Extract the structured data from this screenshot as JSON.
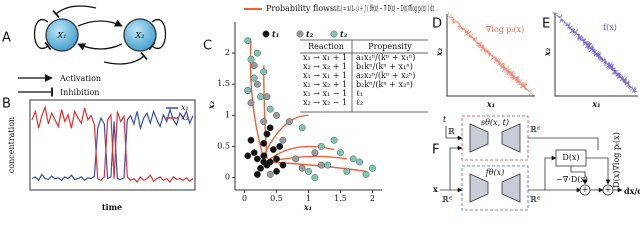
{
  "panel_labels": [
    "A",
    "B",
    "C",
    "D",
    "E",
    "F"
  ],
  "panel_a": {
    "nodes": [
      "X₁",
      "X₂"
    ],
    "legend": [
      "Activation",
      "Inhibition"
    ]
  },
  "chart_data": [
    {
      "type": "line",
      "xlabel": "time",
      "ylabel": "concentration",
      "ylim": [
        0,
        1
      ],
      "series": [
        {
          "name": "x₁",
          "color": "#3a4fb0",
          "values": [
            0.1,
            0.12,
            0.08,
            0.15,
            0.1,
            0.09,
            0.13,
            0.1,
            0.11,
            0.08,
            0.12,
            0.1,
            0.14,
            0.09,
            0.1,
            0.12,
            0.08,
            0.11,
            0.1,
            0.13,
            0.7,
            0.82,
            0.75,
            0.1,
            0.12,
            0.78,
            0.1,
            0.09,
            0.11,
            0.8,
            0.85,
            0.75,
            0.9,
            0.7,
            0.82,
            0.88,
            0.76,
            0.9,
            0.8,
            0.72,
            0.86,
            0.78,
            0.92,
            0.8,
            0.74,
            0.88,
            0.82,
            0.9,
            0.76,
            0.85
          ]
        },
        {
          "name": "x₂",
          "color": "#e03030",
          "values": [
            0.8,
            0.9,
            0.7,
            0.85,
            0.95,
            0.75,
            0.88,
            0.8,
            0.72,
            0.92,
            0.78,
            0.86,
            0.7,
            0.9,
            0.82,
            0.76,
            0.94,
            0.8,
            0.85,
            0.74,
            0.1,
            0.08,
            0.12,
            0.8,
            0.86,
            0.1,
            0.9,
            0.78,
            0.84,
            0.12,
            0.08,
            0.1,
            0.06,
            0.12,
            0.08,
            0.1,
            0.14,
            0.07,
            0.1,
            0.12,
            0.08,
            0.1,
            0.06,
            0.12,
            0.09,
            0.1,
            0.08,
            0.11,
            0.07,
            0.1
          ]
        }
      ]
    },
    {
      "type": "scatter",
      "xlabel": "x₁",
      "ylabel": "x₂",
      "xlim": [
        -0.15,
        2.15
      ],
      "ylim": [
        -0.2,
        2.5
      ],
      "xticks": [
        0,
        0.5,
        1,
        1.5,
        2
      ],
      "yticks": [
        0,
        0.5,
        1,
        1.5,
        2
      ],
      "flow_legend": "Probability flows",
      "formula": "xᵢ(tᵢ) = xᵢ(tᵢ₋₁) + ∫ ( fθ(x) − ∇·D(x) − D(x)∇log pₜ(x) ) dt",
      "series": [
        {
          "name": "t₁",
          "color": "#111111",
          "x": [
            0.2,
            0.3,
            0.35,
            0.4,
            0.25,
            0.5,
            0.45,
            0.3,
            0.15,
            0.6,
            0.1,
            0.35,
            0.5,
            0.4,
            0.2,
            0.55,
            0.3,
            0.05
          ],
          "y": [
            0.3,
            0.35,
            0.2,
            0.25,
            0.15,
            0.3,
            0.45,
            0.55,
            0.4,
            0.2,
            0.6,
            0.7,
            0.1,
            0.8,
            0.05,
            0.5,
            0.25,
            0.35
          ]
        },
        {
          "name": "t₂",
          "color": "#9a9a9a",
          "x": [
            0.1,
            0.3,
            0.6,
            0.8,
            0.2,
            0.5,
            0.9,
            1.1,
            0.4,
            0.7,
            0.15,
            1.2,
            0.05,
            0.35
          ],
          "y": [
            1.2,
            0.9,
            0.6,
            0.3,
            1.5,
            1.0,
            0.15,
            0.4,
            0.05,
            0.9,
            1.8,
            0.2,
            1.4,
            1.3
          ]
        },
        {
          "name": "t₃",
          "color": "#7ec4b4",
          "x": [
            0.05,
            0.1,
            0.2,
            0.15,
            0.3,
            0.05,
            1.3,
            1.6,
            1.9,
            1.8,
            1.5,
            2.0,
            1.2,
            1.7,
            0.9,
            1.0,
            0.25,
            0.4,
            1.1,
            1.4
          ],
          "y": [
            2.2,
            1.9,
            2.0,
            1.6,
            1.7,
            1.4,
            0.2,
            0.1,
            0.05,
            0.25,
            0.4,
            0.15,
            0.5,
            0.3,
            0.8,
            0.1,
            1.3,
            1.1,
            0.0,
            0.6
          ]
        }
      ],
      "table": {
        "header": [
          "Reaction",
          "Propensity"
        ],
        "rows": [
          [
            "x₁ → x₁ + 1",
            "a₁x₁ⁿ/(kⁿ + x₁ⁿ)"
          ],
          [
            "x₂ → x₂ + 1",
            "b₁kⁿ/(kⁿ + x₁ⁿ)"
          ],
          [
            "x₁ → x₁ + 1",
            "a₂x₂ⁿ/(kⁿ + x₂ⁿ)"
          ],
          [
            "x₂ → x₂ + 1",
            "b₂kⁿ/(kⁿ + x₂ⁿ)"
          ],
          [
            "x₁ → x₁ − 1",
            "ℓ₁"
          ],
          [
            "x₂ → x₂ − 1",
            "ℓ₂"
          ]
        ]
      }
    }
  ],
  "panel_d": {
    "title": "∇log pₜ(x)",
    "xlabel": "x₁",
    "ylabel": "x₂"
  },
  "panel_e": {
    "title": "f(x)",
    "xlabel": "x₁",
    "ylabel": "x₂"
  },
  "panel_f": {
    "time_input": "t",
    "state_input": "x",
    "score_net": "sθ(x, t)",
    "drift_net": "fθ(x)",
    "space_labels": [
      "ℝ",
      "ℝᵈ",
      "ℝᵈ",
      "ℝᵈ"
    ],
    "diffusion": "D(x)",
    "divergence": "−∇·D(x)",
    "score_term": "D(x)∇log pₜ(x)",
    "plus": [
      "+",
      "+"
    ],
    "output": "dx/dt"
  }
}
